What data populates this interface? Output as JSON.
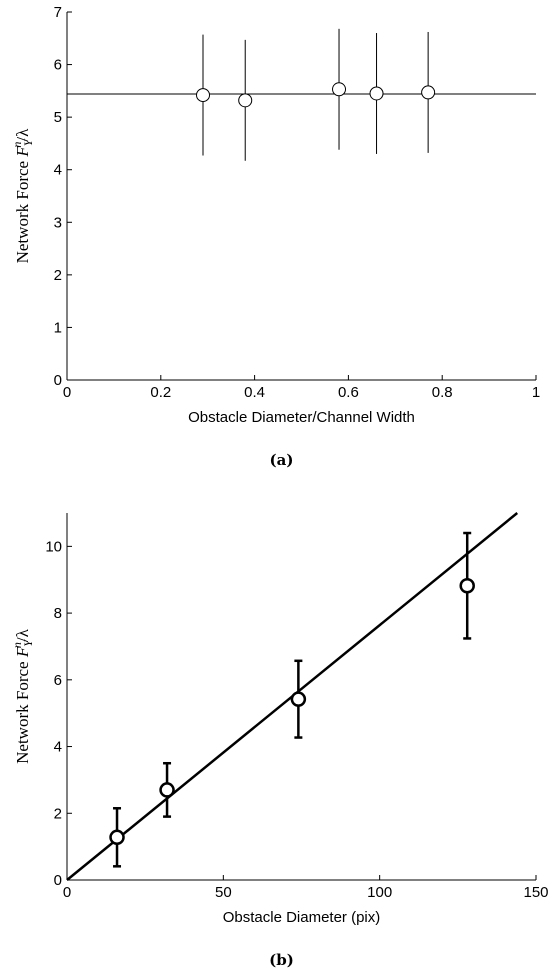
{
  "chart_data": [
    {
      "type": "scatter",
      "xlabel": "Obstacle Diameter/Channel Width",
      "ylabel": {
        "text": "Network Force ",
        "var": "F",
        "sub": "Y",
        "sup": "n",
        "tail": "/λ"
      },
      "caption": "(a)",
      "x": [
        0.29,
        0.38,
        0.58,
        0.66,
        0.77
      ],
      "values": [
        5.42,
        5.32,
        5.53,
        5.45,
        5.47
      ],
      "errors": [
        1.15,
        1.15,
        1.15,
        1.15,
        1.15
      ],
      "fit": {
        "x": [
          0,
          1
        ],
        "values": [
          5.44,
          5.44
        ]
      },
      "color": "#000000",
      "line_width": 1,
      "error_caps": false,
      "xlim": [
        0,
        1
      ],
      "xticks": [
        0,
        0.2,
        0.4,
        0.6,
        0.8,
        1
      ],
      "ylim": [
        0,
        7
      ],
      "yticks": [
        0,
        1,
        2,
        3,
        4,
        5,
        6,
        7
      ]
    },
    {
      "type": "scatter",
      "xlabel": "Obstacle Diameter (pix)",
      "ylabel": {
        "text": "Network Force ",
        "var": "F",
        "sub": "Y",
        "sup": "n",
        "tail": "/λ"
      },
      "caption": "(b)",
      "x": [
        16,
        32,
        74,
        128
      ],
      "values": [
        1.28,
        2.7,
        5.42,
        8.82
      ],
      "errors": [
        0.87,
        0.8,
        1.15,
        1.58
      ],
      "fit": {
        "x": [
          0,
          144
        ],
        "values": [
          0,
          11
        ]
      },
      "color": "#000000",
      "line_width": 2.5,
      "error_caps": true,
      "xlim": [
        0,
        150
      ],
      "xticks": [
        0,
        50,
        100,
        150
      ],
      "ylim": [
        0,
        11
      ],
      "yticks": [
        0,
        2,
        4,
        6,
        8,
        10
      ]
    }
  ]
}
